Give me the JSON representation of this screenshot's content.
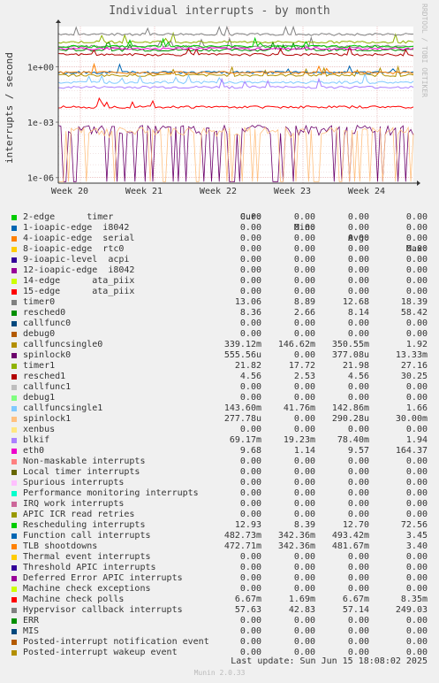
{
  "title": "Individual interrupts - by month",
  "ylabel": "interrupts / second",
  "side_label": "RRDTOOL / TOBI OETIKER",
  "headers": {
    "cur": "Cur:",
    "min": "Min:",
    "avg": "Avg:",
    "max": "Max:"
  },
  "footer": "Last update:  Sun Jun 15 18:08:02 2025",
  "version": "Munin 2.0.33",
  "chart_data": {
    "type": "line",
    "yscale": "log",
    "ylim": [
      5e-07,
      150
    ],
    "yticks": [
      "1e+00",
      "1e-03",
      "1e-06"
    ],
    "xticks": [
      "Week 20",
      "Week 21",
      "Week 22",
      "Week 23",
      "Week 24"
    ],
    "grid": true
  },
  "series": [
    {
      "name": "2-edge      timer",
      "color": "#00cc00",
      "cur": "0.00",
      "min": "0.00",
      "avg": "0.00",
      "max": "0.00"
    },
    {
      "name": "1-ioapic-edge  i8042",
      "color": "#0066b3",
      "cur": "0.00",
      "min": "0.00",
      "avg": "0.00",
      "max": "0.00"
    },
    {
      "name": "4-ioapic-edge  serial",
      "color": "#ff8000",
      "cur": "0.00",
      "min": "0.00",
      "avg": "0.00",
      "max": "0.00"
    },
    {
      "name": "8-ioapic-edge  rtc0",
      "color": "#ffcc00",
      "cur": "0.00",
      "min": "0.00",
      "avg": "0.00",
      "max": "0.00"
    },
    {
      "name": "9-ioapic-level  acpi",
      "color": "#330099",
      "cur": "0.00",
      "min": "0.00",
      "avg": "0.00",
      "max": "0.00"
    },
    {
      "name": "12-ioapic-edge  i8042",
      "color": "#990099",
      "cur": "0.00",
      "min": "0.00",
      "avg": "0.00",
      "max": "0.00"
    },
    {
      "name": "14-edge      ata_piix",
      "color": "#ccff00",
      "cur": "0.00",
      "min": "0.00",
      "avg": "0.00",
      "max": "0.00"
    },
    {
      "name": "15-edge      ata_piix",
      "color": "#ff0000",
      "cur": "0.00",
      "min": "0.00",
      "avg": "0.00",
      "max": "0.00"
    },
    {
      "name": "timer0",
      "color": "#808080",
      "cur": "13.06",
      "min": "8.89",
      "avg": "12.68",
      "max": "18.39"
    },
    {
      "name": "resched0",
      "color": "#008f00",
      "cur": "8.36",
      "min": "2.66",
      "avg": "8.14",
      "max": "58.42"
    },
    {
      "name": "callfunc0",
      "color": "#00487d",
      "cur": "0.00",
      "min": "0.00",
      "avg": "0.00",
      "max": "0.00"
    },
    {
      "name": "debug0",
      "color": "#b35a00",
      "cur": "0.00",
      "min": "0.00",
      "avg": "0.00",
      "max": "0.00"
    },
    {
      "name": "callfuncsingle0",
      "color": "#b38f00",
      "cur": "339.12m",
      "min": "146.62m",
      "avg": "350.55m",
      "max": "1.92"
    },
    {
      "name": "spinlock0",
      "color": "#6b006b",
      "cur": "555.56u",
      "min": "0.00",
      "avg": "377.08u",
      "max": "13.33m"
    },
    {
      "name": "timer1",
      "color": "#8fb300",
      "cur": "21.82",
      "min": "17.72",
      "avg": "21.98",
      "max": "27.16"
    },
    {
      "name": "resched1",
      "color": "#b30000",
      "cur": "4.56",
      "min": "2.53",
      "avg": "4.56",
      "max": "30.25"
    },
    {
      "name": "callfunc1",
      "color": "#bebebe",
      "cur": "0.00",
      "min": "0.00",
      "avg": "0.00",
      "max": "0.00"
    },
    {
      "name": "debug1",
      "color": "#80ff80",
      "cur": "0.00",
      "min": "0.00",
      "avg": "0.00",
      "max": "0.00"
    },
    {
      "name": "callfuncsingle1",
      "color": "#80c9ff",
      "cur": "143.60m",
      "min": "41.76m",
      "avg": "142.86m",
      "max": "1.66"
    },
    {
      "name": "spinlock1",
      "color": "#ffc080",
      "cur": "277.78u",
      "min": "0.00",
      "avg": "290.28u",
      "max": "30.00m"
    },
    {
      "name": "xenbus",
      "color": "#ffe680",
      "cur": "0.00",
      "min": "0.00",
      "avg": "0.00",
      "max": "0.00"
    },
    {
      "name": "blkif",
      "color": "#aa80ff",
      "cur": "69.17m",
      "min": "19.23m",
      "avg": "78.40m",
      "max": "1.94"
    },
    {
      "name": "eth0",
      "color": "#ee00cc",
      "cur": "9.68",
      "min": "1.14",
      "avg": "9.57",
      "max": "164.37"
    },
    {
      "name": "Non-maskable interrupts",
      "color": "#ff8080",
      "cur": "0.00",
      "min": "0.00",
      "avg": "0.00",
      "max": "0.00"
    },
    {
      "name": "Local timer interrupts",
      "color": "#666600",
      "cur": "0.00",
      "min": "0.00",
      "avg": "0.00",
      "max": "0.00"
    },
    {
      "name": "Spurious interrupts",
      "color": "#ffbfff",
      "cur": "0.00",
      "min": "0.00",
      "avg": "0.00",
      "max": "0.00"
    },
    {
      "name": "Performance monitoring interrupts",
      "color": "#00ffcc",
      "cur": "0.00",
      "min": "0.00",
      "avg": "0.00",
      "max": "0.00"
    },
    {
      "name": "IRQ work interrupts",
      "color": "#cc6699",
      "cur": "0.00",
      "min": "0.00",
      "avg": "0.00",
      "max": "0.00"
    },
    {
      "name": "APIC ICR read retries",
      "color": "#999900",
      "cur": "0.00",
      "min": "0.00",
      "avg": "0.00",
      "max": "0.00"
    },
    {
      "name": "Rescheduling interrupts",
      "color": "#00cc00",
      "cur": "12.93",
      "min": "8.39",
      "avg": "12.70",
      "max": "72.56"
    },
    {
      "name": "Function call interrupts",
      "color": "#0066b3",
      "cur": "482.73m",
      "min": "342.36m",
      "avg": "493.42m",
      "max": "3.45"
    },
    {
      "name": "TLB shootdowns",
      "color": "#ff8000",
      "cur": "472.71m",
      "min": "342.36m",
      "avg": "481.67m",
      "max": "3.40"
    },
    {
      "name": "Thermal event interrupts",
      "color": "#ffcc00",
      "cur": "0.00",
      "min": "0.00",
      "avg": "0.00",
      "max": "0.00"
    },
    {
      "name": "Threshold APIC interrupts",
      "color": "#330099",
      "cur": "0.00",
      "min": "0.00",
      "avg": "0.00",
      "max": "0.00"
    },
    {
      "name": "Deferred Error APIC interrupts",
      "color": "#990099",
      "cur": "0.00",
      "min": "0.00",
      "avg": "0.00",
      "max": "0.00"
    },
    {
      "name": "Machine check exceptions",
      "color": "#ccff00",
      "cur": "0.00",
      "min": "0.00",
      "avg": "0.00",
      "max": "0.00"
    },
    {
      "name": "Machine check polls",
      "color": "#ff0000",
      "cur": "6.67m",
      "min": "1.69m",
      "avg": "6.67m",
      "max": "8.35m"
    },
    {
      "name": "Hypervisor callback interrupts",
      "color": "#808080",
      "cur": "57.63",
      "min": "42.83",
      "avg": "57.14",
      "max": "249.03"
    },
    {
      "name": "ERR",
      "color": "#008f00",
      "cur": "0.00",
      "min": "0.00",
      "avg": "0.00",
      "max": "0.00"
    },
    {
      "name": "MIS",
      "color": "#00487d",
      "cur": "0.00",
      "min": "0.00",
      "avg": "0.00",
      "max": "0.00"
    },
    {
      "name": "Posted-interrupt notification event",
      "color": "#b35a00",
      "cur": "0.00",
      "min": "0.00",
      "avg": "0.00",
      "max": "0.00"
    },
    {
      "name": "Posted-interrupt wakeup event",
      "color": "#b38f00",
      "cur": "0.00",
      "min": "0.00",
      "avg": "0.00",
      "max": "0.00"
    }
  ]
}
